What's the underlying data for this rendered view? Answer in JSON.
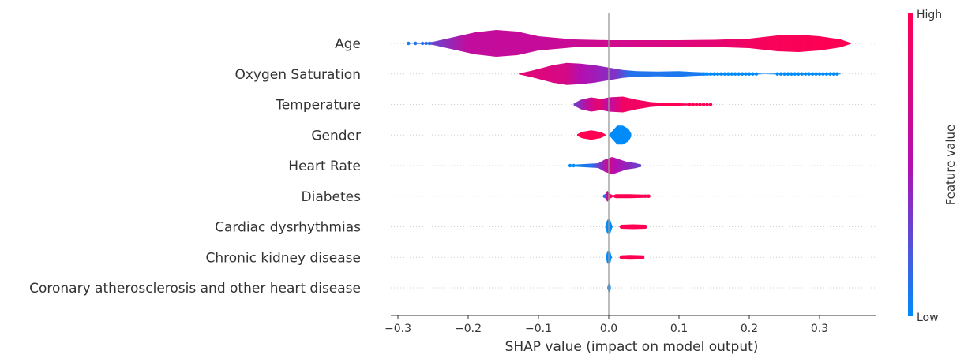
{
  "chart_data": {
    "type": "violin",
    "xlabel": "SHAP value (impact on model output)",
    "xlim": [
      -0.31,
      0.38
    ],
    "xticks": [
      -0.3,
      -0.2,
      -0.1,
      0.0,
      0.1,
      0.2,
      0.3
    ],
    "xtick_labels": [
      "−0.3",
      "−0.2",
      "−0.1",
      "0.0",
      "0.1",
      "0.2",
      "0.3"
    ],
    "colorbar": {
      "label": "Feature value",
      "high": "High",
      "low": "Low"
    },
    "colors": {
      "low": "#008bfb",
      "high": "#ff0052",
      "mid": "#b30fb0",
      "zero_line": "#999999",
      "text": "#333333"
    },
    "features": [
      {
        "name": "Age",
        "min": -0.285,
        "max": 0.345,
        "profile": [
          [
            -0.285,
            0.3
          ],
          [
            -0.265,
            0.8
          ],
          [
            -0.25,
            2
          ],
          [
            -0.22,
            8
          ],
          [
            -0.19,
            14
          ],
          [
            -0.16,
            17
          ],
          [
            -0.13,
            15
          ],
          [
            -0.1,
            9
          ],
          [
            -0.05,
            5
          ],
          [
            0.0,
            4
          ],
          [
            0.05,
            4
          ],
          [
            0.1,
            4
          ],
          [
            0.15,
            4.5
          ],
          [
            0.2,
            6
          ],
          [
            0.24,
            10
          ],
          [
            0.27,
            11
          ],
          [
            0.3,
            9
          ],
          [
            0.33,
            5
          ],
          [
            0.345,
            0.5
          ]
        ],
        "color_stops": [
          [
            -0.285,
            0.05
          ],
          [
            -0.26,
            0.25
          ],
          [
            -0.2,
            0.6
          ],
          [
            -0.1,
            0.62
          ],
          [
            0.0,
            0.68
          ],
          [
            0.15,
            0.82
          ],
          [
            0.22,
            0.95
          ],
          [
            0.345,
            1
          ]
        ]
      },
      {
        "name": "Oxygen Saturation",
        "min": -0.128,
        "max": 0.33,
        "profile": [
          [
            -0.128,
            0.5
          ],
          [
            -0.11,
            4
          ],
          [
            -0.08,
            11
          ],
          [
            -0.06,
            14
          ],
          [
            -0.04,
            13
          ],
          [
            -0.02,
            11
          ],
          [
            0.0,
            8
          ],
          [
            0.02,
            5
          ],
          [
            0.04,
            3.5
          ],
          [
            0.07,
            3
          ],
          [
            0.1,
            3.5
          ],
          [
            0.12,
            2.5
          ],
          [
            0.15,
            1.5
          ],
          [
            0.2,
            1.2
          ],
          [
            0.22,
            0.3
          ],
          [
            0.25,
            0.8
          ],
          [
            0.3,
            1
          ],
          [
            0.33,
            0.5
          ]
        ],
        "color_stops": [
          [
            -0.128,
            0.82
          ],
          [
            -0.06,
            0.72
          ],
          [
            -0.04,
            0.5
          ],
          [
            -0.01,
            0.42
          ],
          [
            0.01,
            0.35
          ],
          [
            0.03,
            0.1
          ],
          [
            0.33,
            0.0
          ]
        ]
      },
      {
        "name": "Temperature",
        "min": -0.05,
        "max": 0.145,
        "profile": [
          [
            -0.05,
            1
          ],
          [
            -0.04,
            6
          ],
          [
            -0.025,
            9
          ],
          [
            -0.01,
            7
          ],
          [
            0.0,
            9
          ],
          [
            0.02,
            10
          ],
          [
            0.04,
            6
          ],
          [
            0.06,
            3
          ],
          [
            0.08,
            2
          ],
          [
            0.1,
            1.5
          ],
          [
            0.12,
            1
          ],
          [
            0.145,
            0.5
          ]
        ],
        "color_stops": [
          [
            -0.05,
            0.3
          ],
          [
            -0.03,
            0.6
          ],
          [
            -0.015,
            0.85
          ],
          [
            0.0,
            0.55
          ],
          [
            0.02,
            0.9
          ],
          [
            0.145,
            1
          ]
        ]
      },
      {
        "name": "Gender",
        "min": -0.045,
        "max": 0.032,
        "profile": [
          [
            -0.045,
            1
          ],
          [
            -0.038,
            4
          ],
          [
            -0.025,
            6
          ],
          [
            -0.012,
            4
          ],
          [
            -0.006,
            1.5
          ],
          [
            -0.004,
            0
          ],
          [
            0.0,
            0
          ],
          [
            0.004,
            4
          ],
          [
            0.012,
            12
          ],
          [
            0.02,
            12
          ],
          [
            0.028,
            8
          ],
          [
            0.032,
            2
          ]
        ],
        "color_stops": [
          [
            -0.045,
            1
          ],
          [
            -0.004,
            1
          ],
          [
            0.0,
            0
          ],
          [
            0.032,
            0
          ]
        ]
      },
      {
        "name": "Heart Rate",
        "min": -0.055,
        "max": 0.045,
        "profile": [
          [
            -0.055,
            1
          ],
          [
            -0.035,
            2
          ],
          [
            -0.015,
            3
          ],
          [
            -0.005,
            8
          ],
          [
            0.005,
            11
          ],
          [
            0.015,
            8
          ],
          [
            0.025,
            5
          ],
          [
            0.04,
            3
          ],
          [
            0.045,
            1
          ]
        ],
        "color_stops": [
          [
            -0.055,
            0
          ],
          [
            -0.025,
            0.1
          ],
          [
            -0.01,
            0.4
          ],
          [
            0.0,
            0.7
          ],
          [
            0.01,
            0.5
          ],
          [
            0.045,
            0.3
          ]
        ]
      },
      {
        "name": "Diabetes",
        "min": -0.006,
        "max": 0.057,
        "profile": [
          [
            -0.006,
            1.5
          ],
          [
            -0.002,
            7
          ],
          [
            0.002,
            3
          ],
          [
            0.006,
            1
          ],
          [
            0.01,
            2.5
          ],
          [
            0.03,
            2.5
          ],
          [
            0.05,
            2
          ],
          [
            0.057,
            1
          ]
        ],
        "color_stops": [
          [
            -0.006,
            0.15
          ],
          [
            -0.002,
            0.7
          ],
          [
            0.003,
            1
          ],
          [
            0.057,
            1
          ]
        ]
      },
      {
        "name": "Cardiac dysrhythmias",
        "min": -0.005,
        "max": 0.055,
        "profile": [
          [
            -0.005,
            1
          ],
          [
            -0.002,
            9
          ],
          [
            0.002,
            9
          ],
          [
            0.005,
            1
          ],
          [
            0.006,
            0
          ],
          [
            0.015,
            0
          ],
          [
            0.017,
            2.5
          ],
          [
            0.035,
            3
          ],
          [
            0.053,
            2.5
          ],
          [
            0.055,
            0
          ]
        ],
        "color_stops": [
          [
            -0.005,
            0
          ],
          [
            0.005,
            0
          ],
          [
            0.012,
            1
          ],
          [
            0.055,
            1
          ]
        ]
      },
      {
        "name": "Chronic kidney disease",
        "min": -0.004,
        "max": 0.05,
        "profile": [
          [
            -0.004,
            1
          ],
          [
            -0.002,
            8
          ],
          [
            0.002,
            8
          ],
          [
            0.004,
            1
          ],
          [
            0.005,
            0
          ],
          [
            0.015,
            0
          ],
          [
            0.017,
            2.5
          ],
          [
            0.03,
            3
          ],
          [
            0.05,
            2.5
          ],
          [
            0.051,
            0
          ]
        ],
        "color_stops": [
          [
            -0.004,
            0
          ],
          [
            0.005,
            0
          ],
          [
            0.012,
            1
          ],
          [
            0.05,
            1
          ]
        ]
      },
      {
        "name": "Coronary atherosclerosis and other heart disease",
        "min": -0.002,
        "max": 0.003,
        "profile": [
          [
            -0.002,
            1
          ],
          [
            0.0,
            6
          ],
          [
            0.002,
            5
          ],
          [
            0.003,
            1
          ]
        ],
        "color_stops": [
          [
            -0.002,
            0
          ],
          [
            0.003,
            0.05
          ]
        ]
      }
    ],
    "outliers": [
      {
        "feature": 0,
        "points": [
          [
            -0.285,
            0.05
          ],
          [
            -0.275,
            0.1
          ],
          [
            -0.265,
            0.1
          ],
          [
            -0.26,
            0.1
          ],
          [
            -0.255,
            0.15
          ]
        ]
      },
      {
        "feature": 1,
        "points": [
          [
            0.135,
            0
          ],
          [
            0.14,
            0
          ],
          [
            0.145,
            0
          ],
          [
            0.15,
            0
          ],
          [
            0.155,
            0
          ],
          [
            0.16,
            0
          ],
          [
            0.165,
            0
          ],
          [
            0.17,
            0
          ],
          [
            0.175,
            0
          ],
          [
            0.18,
            0
          ],
          [
            0.185,
            0
          ],
          [
            0.19,
            0
          ],
          [
            0.195,
            0
          ],
          [
            0.2,
            0
          ],
          [
            0.205,
            0
          ],
          [
            0.21,
            0
          ],
          [
            0.24,
            0
          ],
          [
            0.245,
            0
          ],
          [
            0.25,
            0
          ],
          [
            0.255,
            0
          ],
          [
            0.26,
            0
          ],
          [
            0.265,
            0
          ],
          [
            0.27,
            0
          ],
          [
            0.275,
            0
          ],
          [
            0.28,
            0
          ],
          [
            0.285,
            0
          ],
          [
            0.29,
            0
          ],
          [
            0.295,
            0
          ],
          [
            0.3,
            0
          ],
          [
            0.305,
            0
          ],
          [
            0.31,
            0
          ],
          [
            0.315,
            0
          ],
          [
            0.32,
            0
          ],
          [
            0.325,
            0
          ]
        ]
      },
      {
        "feature": 2,
        "points": [
          [
            0.08,
            1
          ],
          [
            0.085,
            1
          ],
          [
            0.09,
            1
          ],
          [
            0.095,
            1
          ],
          [
            0.1,
            1
          ],
          [
            0.115,
            1
          ],
          [
            0.12,
            1
          ],
          [
            0.125,
            1
          ],
          [
            0.13,
            1
          ],
          [
            0.135,
            1
          ],
          [
            0.14,
            1
          ],
          [
            0.145,
            1
          ]
        ]
      },
      {
        "feature": 4,
        "points": [
          [
            -0.055,
            0
          ],
          [
            -0.05,
            0
          ],
          [
            0.04,
            0.3
          ],
          [
            0.044,
            0.3
          ]
        ]
      },
      {
        "feature": 5,
        "points": [
          [
            -0.006,
            0.1
          ],
          [
            0.052,
            1
          ],
          [
            0.055,
            1
          ],
          [
            0.057,
            1
          ]
        ]
      }
    ]
  }
}
